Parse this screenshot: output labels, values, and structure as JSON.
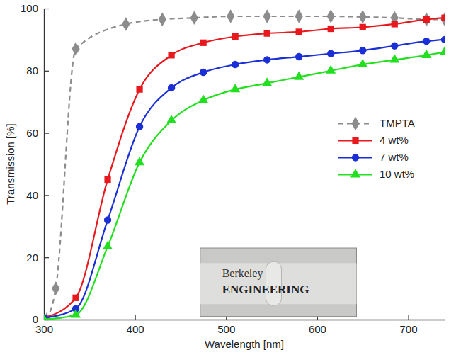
{
  "chart_data": {
    "type": "line",
    "x_label": "Wavelength [nm]",
    "y_label": "Transmission [%]",
    "xlim": [
      300,
      740
    ],
    "xticks": [
      300,
      400,
      500,
      600,
      700
    ],
    "ylim": [
      0,
      100
    ],
    "yticks": [
      0,
      20,
      40,
      60,
      80,
      100
    ],
    "legend": "right",
    "annotations": [
      "Berkeley",
      "ENGINEERING"
    ],
    "series": [
      {
        "name": "TMPTA",
        "color": "#8c8c8c",
        "marker": "diamond",
        "line_style": "dashed",
        "x": [
          303,
          313,
          335,
          390,
          430,
          465,
          505,
          545,
          580,
          615,
          650,
          685,
          720,
          740
        ],
        "values": [
          0,
          10,
          87,
          95,
          96.5,
          97,
          97.5,
          97.5,
          97.5,
          97.5,
          97.3,
          97,
          96.5,
          96.5
        ]
      },
      {
        "name": "4 wt%",
        "color": "#e8191e",
        "marker": "square",
        "line_style": "solid",
        "x": [
          300,
          335,
          370,
          405,
          440,
          475,
          510,
          545,
          580,
          615,
          650,
          685,
          720,
          740
        ],
        "values": [
          0.5,
          7,
          45,
          74,
          85,
          89,
          91,
          92,
          92.5,
          93.5,
          94,
          95,
          96.5,
          97
        ]
      },
      {
        "name": "7 wt%",
        "color": "#1a2fd6",
        "marker": "circle",
        "line_style": "solid",
        "x": [
          300,
          335,
          370,
          405,
          440,
          475,
          510,
          545,
          580,
          615,
          650,
          685,
          720,
          740
        ],
        "values": [
          0.5,
          3.5,
          32,
          62,
          74.5,
          79.5,
          82,
          83.5,
          84.5,
          85.5,
          86.5,
          88,
          89.5,
          90
        ]
      },
      {
        "name": "10 wt%",
        "color": "#22e01f",
        "marker": "triangle",
        "line_style": "solid",
        "x": [
          300,
          335,
          370,
          405,
          440,
          475,
          510,
          545,
          580,
          615,
          650,
          685,
          720,
          740
        ],
        "values": [
          0,
          1.5,
          23.5,
          50.5,
          64,
          70.5,
          74,
          76,
          78,
          80,
          82,
          83.5,
          85,
          86
        ]
      }
    ]
  }
}
